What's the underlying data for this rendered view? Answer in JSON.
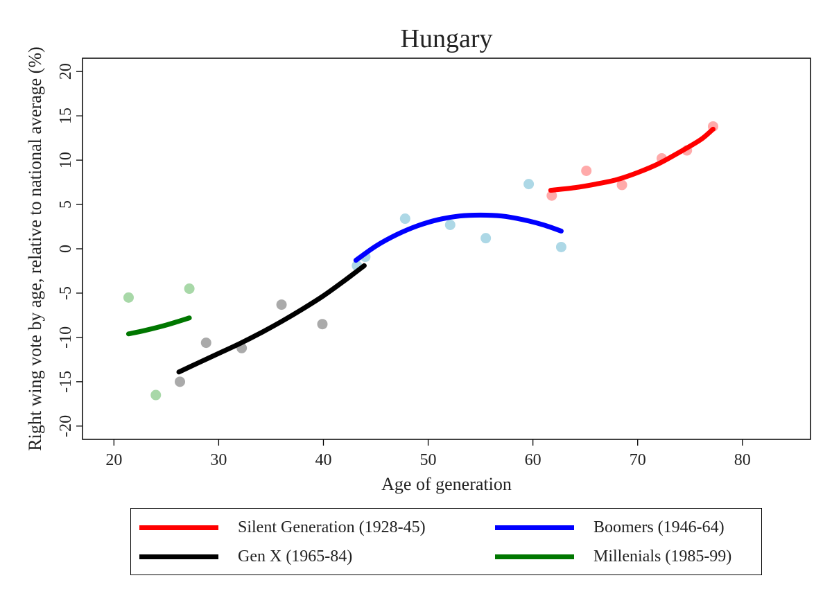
{
  "chart_data": {
    "type": "scatter",
    "title": "Hungary",
    "xlabel": "Age of generation",
    "ylabel": "Right wing vote by age, relative to national average (%)",
    "xlim": [
      17,
      86.5
    ],
    "ylim": [
      -21.5,
      21.5
    ],
    "xticks": [
      20,
      30,
      40,
      50,
      60,
      70,
      80
    ],
    "yticks": [
      -20,
      -15,
      -10,
      -5,
      0,
      5,
      10,
      15,
      20
    ],
    "grid": false,
    "legend_placement": "bottom",
    "series": [
      {
        "name": "Silent Generation (1928-45)",
        "color": "#ff0000",
        "point_color": "#ffaaaa",
        "points": [
          [
            61.8,
            6.0
          ],
          [
            65.1,
            8.8
          ],
          [
            68.5,
            7.2
          ],
          [
            72.3,
            10.2
          ],
          [
            74.7,
            11.1
          ],
          [
            77.2,
            13.8
          ]
        ],
        "fit": [
          [
            61.7,
            6.6
          ],
          [
            64,
            6.9
          ],
          [
            66,
            7.3
          ],
          [
            68,
            7.8
          ],
          [
            70,
            8.6
          ],
          [
            72,
            9.6
          ],
          [
            74,
            10.9
          ],
          [
            76,
            12.3
          ],
          [
            77.2,
            13.5
          ]
        ]
      },
      {
        "name": "Boomers (1946-64)",
        "color": "#0000ff",
        "point_color": "#add8e6",
        "points": [
          [
            43.2,
            -1.9
          ],
          [
            44.0,
            -0.9
          ],
          [
            47.8,
            3.4
          ],
          [
            52.1,
            2.7
          ],
          [
            55.5,
            1.2
          ],
          [
            59.6,
            7.3
          ],
          [
            62.7,
            0.2
          ]
        ],
        "fit": [
          [
            43.1,
            -1.3
          ],
          [
            45,
            0.3
          ],
          [
            47,
            1.6
          ],
          [
            49,
            2.6
          ],
          [
            51,
            3.3
          ],
          [
            53,
            3.7
          ],
          [
            55,
            3.8
          ],
          [
            57,
            3.7
          ],
          [
            59,
            3.3
          ],
          [
            61,
            2.7
          ],
          [
            62.7,
            2.0
          ]
        ]
      },
      {
        "name": "Gen X (1965-84)",
        "color": "#000000",
        "point_color": "#aaaaaa",
        "points": [
          [
            26.3,
            -15.0
          ],
          [
            28.8,
            -10.6
          ],
          [
            32.2,
            -11.2
          ],
          [
            36.0,
            -6.3
          ],
          [
            39.9,
            -8.5
          ]
        ],
        "fit": [
          [
            26.2,
            -13.9
          ],
          [
            28,
            -12.9
          ],
          [
            30,
            -11.8
          ],
          [
            32,
            -10.7
          ],
          [
            34,
            -9.5
          ],
          [
            36,
            -8.2
          ],
          [
            38,
            -6.8
          ],
          [
            40,
            -5.3
          ],
          [
            42,
            -3.6
          ],
          [
            43.9,
            -1.9
          ]
        ]
      },
      {
        "name": "Millenials (1985-99)",
        "color": "#007700",
        "point_color": "#a8d8a8",
        "points": [
          [
            21.4,
            -5.5
          ],
          [
            24.0,
            -16.5
          ],
          [
            27.2,
            -4.5
          ]
        ],
        "fit": [
          [
            21.4,
            -9.6
          ],
          [
            23,
            -9.2
          ],
          [
            25,
            -8.6
          ],
          [
            27.2,
            -7.8
          ]
        ]
      }
    ],
    "legend_order": [
      0,
      1,
      2,
      3
    ]
  }
}
